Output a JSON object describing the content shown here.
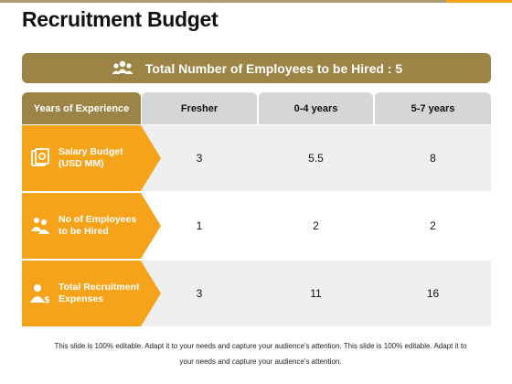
{
  "title": "Recruitment Budget",
  "banner": {
    "text": "Total Number of Employees to be Hired : 5",
    "icon": "people-group-icon"
  },
  "table": {
    "header_label": "Years of Experience",
    "columns": [
      "Fresher",
      "0-4 years",
      "5-7 years"
    ],
    "rows": [
      {
        "label_line1": "Salary Budget",
        "label_line2": "(USD MM)",
        "icon": "money-icon",
        "values": [
          "3",
          "5.5",
          "8"
        ]
      },
      {
        "label_line1": "No of Employees",
        "label_line2": "to be Hired",
        "icon": "employees-icon",
        "values": [
          "1",
          "2",
          "2"
        ]
      },
      {
        "label_line1": "Total Recruitment",
        "label_line2": "Expenses",
        "icon": "person-dollar-icon",
        "values": [
          "3",
          "11",
          "16"
        ]
      }
    ]
  },
  "footer": {
    "line1": "This slide is 100% editable. Adapt it to your needs and capture your audience's attention. This slide is 100% editable. Adapt it to",
    "line2": "your needs and capture your audience's attention."
  },
  "colors": {
    "accent_orange": "#f5a31a",
    "accent_gold": "#9c8446",
    "header_grey": "#d6d6d6",
    "row_alt": "#efefef"
  }
}
